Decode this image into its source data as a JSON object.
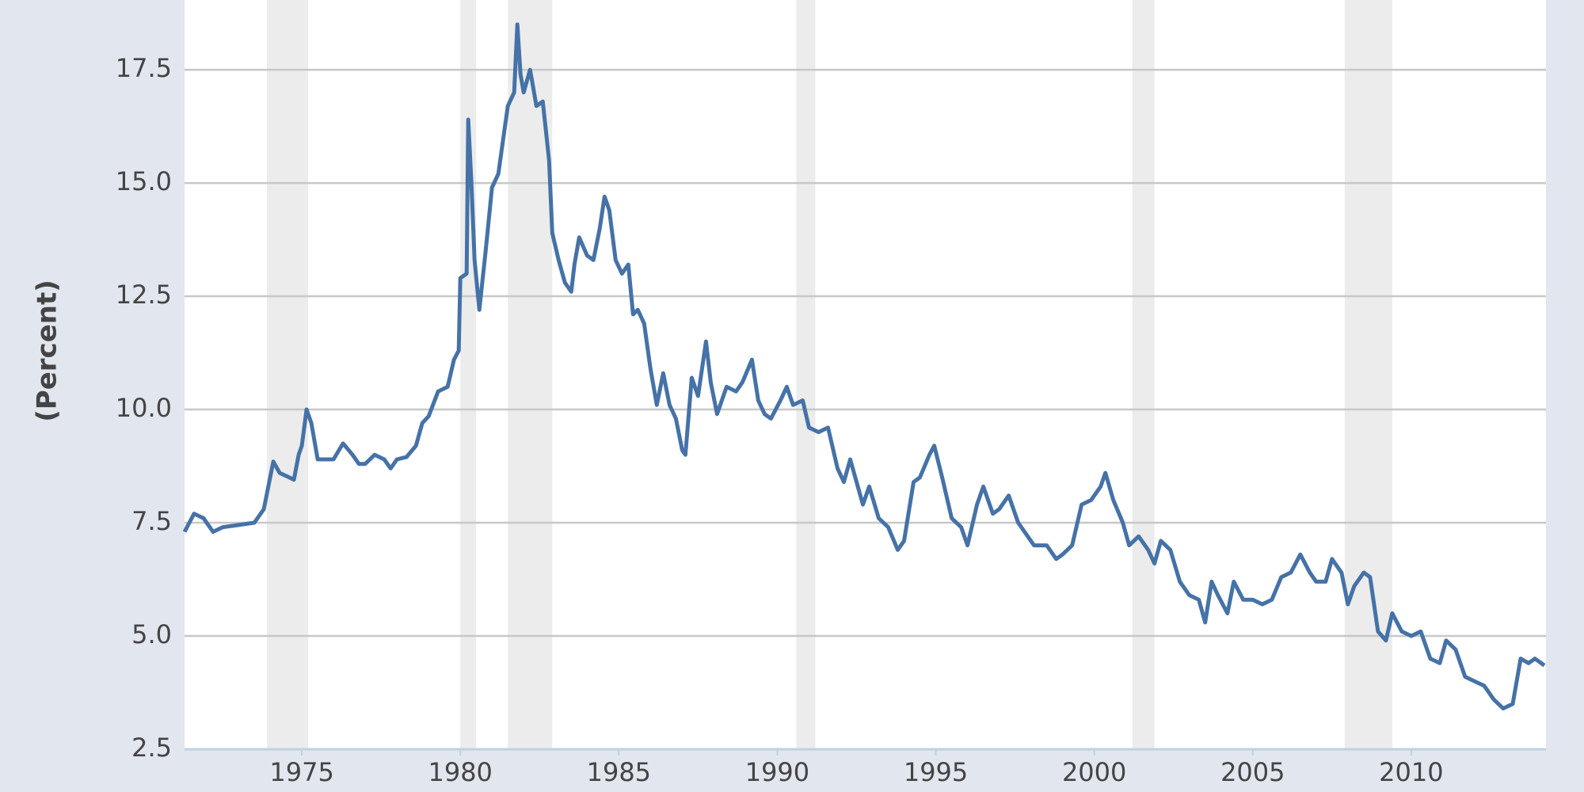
{
  "chart_data": {
    "type": "line",
    "y_label": "(Percent)",
    "x": [
      1971.3,
      1971.6,
      1971.9,
      1972.2,
      1972.5,
      1973.0,
      1973.5,
      1973.8,
      1974.0,
      1974.1,
      1974.3,
      1974.6,
      1974.75,
      1974.9,
      1975.0,
      1975.15,
      1975.3,
      1975.5,
      1975.7,
      1976.0,
      1976.3,
      1976.6,
      1976.8,
      1977.0,
      1977.3,
      1977.6,
      1977.8,
      1978.0,
      1978.3,
      1978.6,
      1978.8,
      1979.0,
      1979.3,
      1979.6,
      1979.8,
      1979.95,
      1980.0,
      1980.2,
      1980.25,
      1980.35,
      1980.45,
      1980.6,
      1980.8,
      1981.0,
      1981.2,
      1981.5,
      1981.7,
      1981.8,
      1981.9,
      1982.0,
      1982.2,
      1982.4,
      1982.6,
      1982.8,
      1982.9,
      1983.1,
      1983.3,
      1983.5,
      1983.6,
      1983.75,
      1984.0,
      1984.2,
      1984.4,
      1984.55,
      1984.7,
      1984.9,
      1985.1,
      1985.3,
      1985.45,
      1985.6,
      1985.8,
      1986.0,
      1986.2,
      1986.4,
      1986.6,
      1986.8,
      1987.0,
      1987.1,
      1987.3,
      1987.5,
      1987.75,
      1987.9,
      1988.1,
      1988.4,
      1988.7,
      1988.9,
      1989.2,
      1989.4,
      1989.6,
      1989.8,
      1990.1,
      1990.3,
      1990.5,
      1990.8,
      1991.0,
      1991.3,
      1991.6,
      1991.9,
      1992.1,
      1992.3,
      1992.5,
      1992.7,
      1992.9,
      1993.2,
      1993.5,
      1993.8,
      1994.0,
      1994.3,
      1994.5,
      1994.8,
      1994.95,
      1995.2,
      1995.5,
      1995.8,
      1996.0,
      1996.3,
      1996.5,
      1996.8,
      1997.0,
      1997.3,
      1997.6,
      1997.9,
      1998.1,
      1998.5,
      1998.8,
      1999.0,
      1999.3,
      1999.6,
      1999.9,
      2000.2,
      2000.35,
      2000.6,
      2000.9,
      2001.1,
      2001.4,
      2001.7,
      2001.9,
      2002.1,
      2002.4,
      2002.7,
      2003.0,
      2003.3,
      2003.5,
      2003.7,
      2003.9,
      2004.2,
      2004.4,
      2004.7,
      2005.0,
      2005.3,
      2005.6,
      2005.9,
      2006.2,
      2006.5,
      2006.8,
      2007.0,
      2007.3,
      2007.5,
      2007.8,
      2008.0,
      2008.2,
      2008.5,
      2008.7,
      2008.95,
      2009.2,
      2009.4,
      2009.7,
      2010.0,
      2010.3,
      2010.6,
      2010.9,
      2011.1,
      2011.4,
      2011.7,
      2012.0,
      2012.3,
      2012.6,
      2012.9,
      2013.2,
      2013.45,
      2013.7,
      2013.9,
      2014.1,
      2014.2
    ],
    "series": [
      {
        "color": "#4572a7",
        "values": [
          7.3,
          7.7,
          7.6,
          7.3,
          7.4,
          7.45,
          7.5,
          7.8,
          8.5,
          8.85,
          8.6,
          8.5,
          8.45,
          9.0,
          9.2,
          10.0,
          9.7,
          8.9,
          8.9,
          8.9,
          9.25,
          9.0,
          8.8,
          8.8,
          9.0,
          8.9,
          8.7,
          8.9,
          8.95,
          9.2,
          9.7,
          9.85,
          10.4,
          10.5,
          11.1,
          11.3,
          12.9,
          13.0,
          16.4,
          15.0,
          13.3,
          12.2,
          13.5,
          14.9,
          15.2,
          16.7,
          17.0,
          18.5,
          17.4,
          17.0,
          17.5,
          16.7,
          16.8,
          15.5,
          13.9,
          13.3,
          12.8,
          12.6,
          13.2,
          13.8,
          13.4,
          13.3,
          14.0,
          14.7,
          14.4,
          13.3,
          13.0,
          13.2,
          12.1,
          12.2,
          11.9,
          10.9,
          10.1,
          10.8,
          10.1,
          9.8,
          9.1,
          9.0,
          10.7,
          10.3,
          11.5,
          10.6,
          9.9,
          10.5,
          10.4,
          10.6,
          11.1,
          10.2,
          9.9,
          9.8,
          10.2,
          10.5,
          10.1,
          10.2,
          9.6,
          9.5,
          9.6,
          8.7,
          8.4,
          8.9,
          8.4,
          7.9,
          8.3,
          7.6,
          7.4,
          6.9,
          7.1,
          8.4,
          8.5,
          9.0,
          9.2,
          8.5,
          7.6,
          7.4,
          7.0,
          7.9,
          8.3,
          7.7,
          7.8,
          8.1,
          7.5,
          7.2,
          7.0,
          7.0,
          6.7,
          6.8,
          7.0,
          7.9,
          8.0,
          8.3,
          8.6,
          8.0,
          7.5,
          7.0,
          7.2,
          6.9,
          6.6,
          7.1,
          6.9,
          6.2,
          5.9,
          5.8,
          5.3,
          6.2,
          5.9,
          5.5,
          6.2,
          5.8,
          5.8,
          5.7,
          5.8,
          6.3,
          6.4,
          6.8,
          6.4,
          6.2,
          6.2,
          6.7,
          6.4,
          5.7,
          6.1,
          6.4,
          6.3,
          5.1,
          4.9,
          5.5,
          5.1,
          5.0,
          5.1,
          4.5,
          4.4,
          4.9,
          4.7,
          4.1,
          4.0,
          3.9,
          3.6,
          3.4,
          3.5,
          4.5,
          4.4,
          4.5,
          4.4,
          4.35
        ]
      }
    ],
    "recessions": [
      [
        1973.9,
        1975.2
      ],
      [
        1980.0,
        1980.5
      ],
      [
        1981.5,
        1982.9
      ],
      [
        1990.6,
        1991.2
      ],
      [
        2001.2,
        2001.9
      ],
      [
        2007.9,
        2009.4
      ]
    ],
    "xlim": [
      1971.3,
      2014.25
    ],
    "xticks": [
      1975,
      1980,
      1985,
      1990,
      1995,
      2000,
      2005,
      2010
    ],
    "ylim": [
      2.5,
      19.04
    ],
    "yticks": [
      {
        "value": 2.5,
        "label": "2.5"
      },
      {
        "value": 5,
        "label": "5.0"
      },
      {
        "value": 7.5,
        "label": "7.5"
      },
      {
        "value": 10,
        "label": "10.0"
      },
      {
        "value": 12.5,
        "label": "12.5"
      },
      {
        "value": 15,
        "label": "15.0"
      },
      {
        "value": 17.5,
        "label": "17.5"
      }
    ],
    "grid": true
  }
}
